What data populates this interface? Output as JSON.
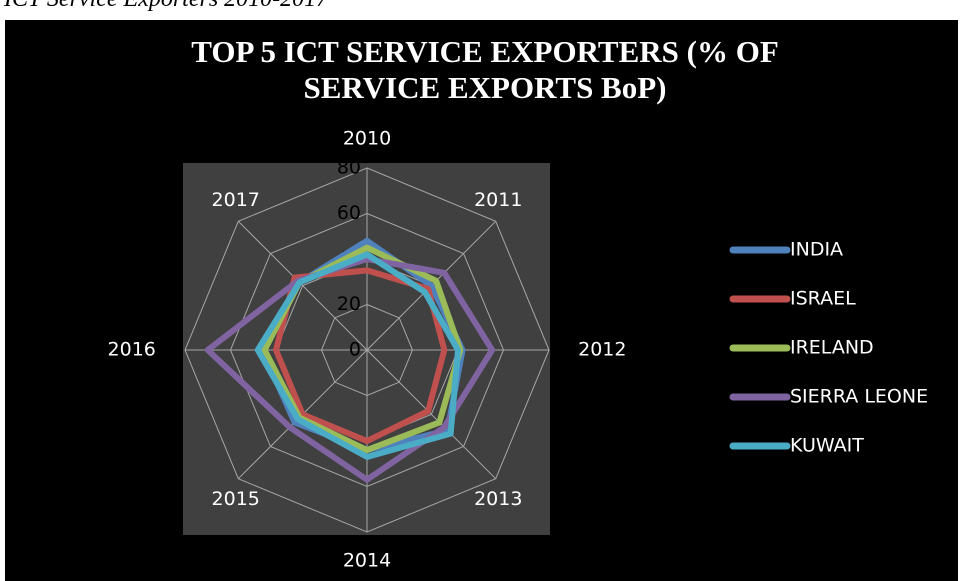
{
  "caption": "ICT Service Exporters 2010-2017",
  "chart_data": {
    "type": "radar",
    "title": "TOP 5 ICT SERVICE EXPORTERS (% OF SERVICE EXPORTS BoP)",
    "categories": [
      "2010",
      "2011",
      "2012",
      "2013",
      "2014",
      "2015",
      "2016",
      "2017"
    ],
    "ylim": [
      0,
      80
    ],
    "yticks": [
      0,
      20,
      40,
      60,
      80
    ],
    "grid": true,
    "legend": "right",
    "series": [
      {
        "name": "INDIA",
        "color": "#4f81bd",
        "values": [
          48,
          40,
          42,
          50,
          44,
          45,
          46,
          42
        ]
      },
      {
        "name": "ISRAEL",
        "color": "#c0504d",
        "values": [
          35,
          38,
          34,
          38,
          40,
          40,
          40,
          45
        ]
      },
      {
        "name": "IRELAND",
        "color": "#9bbb59",
        "values": [
          45,
          43,
          41,
          45,
          44,
          42,
          45,
          42
        ]
      },
      {
        "name": "SIERRA LEONE",
        "color": "#8064a2",
        "values": [
          40,
          48,
          55,
          48,
          57,
          48,
          70,
          43
        ]
      },
      {
        "name": "KUWAIT",
        "color": "#4bacc6",
        "values": [
          42,
          36,
          40,
          52,
          47,
          43,
          48,
          42
        ]
      }
    ]
  }
}
